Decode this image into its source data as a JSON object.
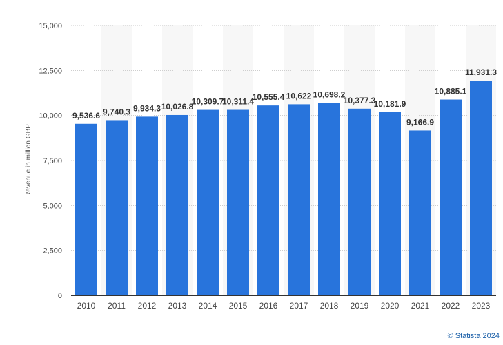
{
  "chart_data": {
    "type": "bar",
    "title": "",
    "xlabel": "",
    "ylabel": "Revenue in million GBP",
    "categories": [
      "2010",
      "2011",
      "2012",
      "2013",
      "2014",
      "2015",
      "2016",
      "2017",
      "2018",
      "2019",
      "2020",
      "2021",
      "2022",
      "2023"
    ],
    "values": [
      9536.6,
      9740.3,
      9934.3,
      10026.8,
      10309.7,
      10311.4,
      10555.4,
      10622,
      10698.2,
      10377.3,
      10181.9,
      9166.9,
      10885.1,
      11931.3
    ],
    "value_labels": [
      "9,536.6",
      "9,740.3",
      "9,934.3",
      "10,026.8",
      "10,309.7",
      "10,311.4",
      "10,555.4",
      "10,622",
      "10,698.2",
      "10,377.3",
      "10,181.9",
      "9,166.9",
      "10,885.1",
      "11,931.3"
    ],
    "ylim": [
      0,
      15000
    ],
    "yticks": [
      0,
      2500,
      5000,
      7500,
      10000,
      12500,
      15000
    ],
    "ytick_labels": [
      "0",
      "2,500",
      "5,000",
      "7,500",
      "10,000",
      "12,500",
      "15,000"
    ],
    "grid": true,
    "bar_color": "#2874dc",
    "band_color": "#f7f7f7",
    "grid_color": "#c8c8c8"
  },
  "credit": "© Statista 2024"
}
